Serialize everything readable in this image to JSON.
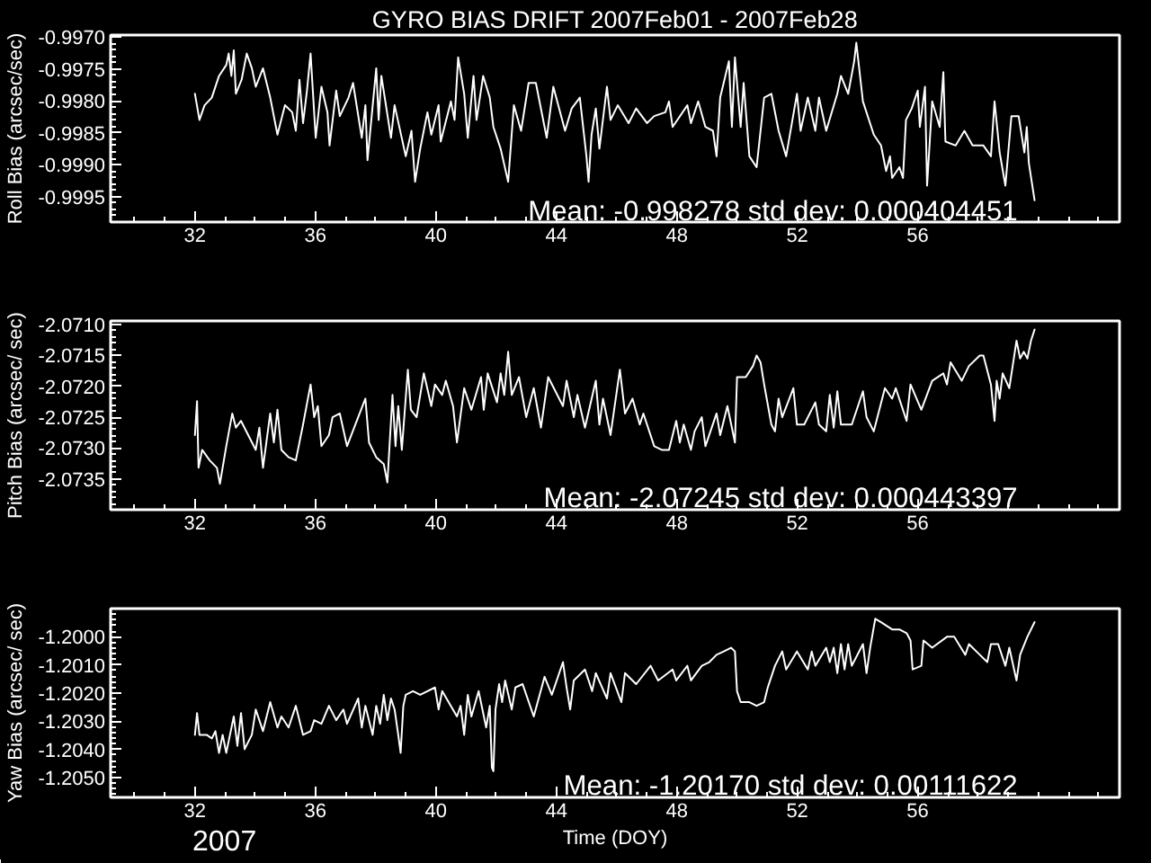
{
  "chart_data": [
    {
      "type": "line",
      "title": "GYRO BIAS DRIFT 2007Feb01 - 2007Feb28",
      "ylabel": "Roll Bias (arcsec/sec)",
      "x": [
        32,
        32.15,
        32.32,
        32.56,
        32.8,
        33.04,
        33.12,
        33.21,
        33.29,
        33.36,
        33.55,
        33.72,
        33.89,
        34.02,
        34.26,
        34.5,
        34.74,
        34.99,
        35.23,
        35.35,
        35.47,
        35.59,
        35.72,
        35.84,
        36.01,
        36.2,
        36.4,
        36.47,
        36.69,
        36.81,
        37.1,
        37.25,
        37.54,
        37.66,
        37.73,
        38.02,
        38.1,
        38.19,
        38.51,
        38.63,
        39.0,
        39.19,
        39.31,
        39.48,
        39.72,
        39.85,
        40.09,
        40.16,
        40.5,
        40.62,
        40.74,
        40.94,
        41.06,
        41.25,
        41.35,
        41.57,
        41.79,
        41.91,
        42.15,
        42.4,
        42.59,
        42.83,
        43.08,
        43.32,
        43.68,
        43.9,
        44.29,
        44.51,
        44.78,
        45.0,
        45.07,
        45.17,
        45.31,
        45.43,
        45.68,
        45.8,
        46.04,
        46.4,
        46.65,
        47.01,
        47.25,
        47.62,
        47.74,
        47.86,
        48.35,
        48.47,
        48.71,
        48.95,
        49.2,
        49.32,
        49.44,
        49.73,
        49.83,
        49.93,
        50.12,
        50.22,
        50.41,
        50.65,
        50.9,
        51.14,
        51.38,
        51.63,
        51.99,
        52.11,
        52.35,
        52.6,
        52.72,
        52.96,
        53.33,
        53.45,
        53.69,
        53.89,
        53.96,
        54.18,
        54.54,
        54.78,
        54.95,
        55.08,
        55.15,
        55.39,
        55.51,
        55.61,
        55.8,
        56.0,
        56.07,
        56.24,
        56.31,
        56.48,
        56.73,
        56.85,
        56.92,
        57.26,
        57.55,
        57.82,
        58.18,
        58.43,
        58.55,
        58.72,
        58.91,
        59.11,
        59.35,
        59.54,
        59.62,
        59.69,
        59.88
      ],
      "series": [
        {
          "color": "#ffffff",
          "values": [
            -0.99789,
            -0.9983,
            -0.99807,
            -0.99795,
            -0.99761,
            -0.99744,
            -0.99726,
            -0.99761,
            -0.99721,
            -0.99789,
            -0.99767,
            -0.99726,
            -0.99749,
            -0.99778,
            -0.99749,
            -0.99795,
            -0.99853,
            -0.99807,
            -0.99818,
            -0.99847,
            -0.99767,
            -0.99835,
            -0.99784,
            -0.99726,
            -0.99858,
            -0.99778,
            -0.99818,
            -0.9987,
            -0.99784,
            -0.99824,
            -0.99795,
            -0.99772,
            -0.99858,
            -0.99807,
            -0.99893,
            -0.99749,
            -0.9983,
            -0.99761,
            -0.99858,
            -0.99807,
            -0.99887,
            -0.99847,
            -0.99927,
            -0.99875,
            -0.99818,
            -0.99853,
            -0.99807,
            -0.99864,
            -0.99801,
            -0.9983,
            -0.99732,
            -0.99789,
            -0.99858,
            -0.99761,
            -0.9983,
            -0.99761,
            -0.99795,
            -0.99841,
            -0.99875,
            -0.99927,
            -0.99807,
            -0.99847,
            -0.99772,
            -0.99772,
            -0.99858,
            -0.99778,
            -0.99847,
            -0.99812,
            -0.99795,
            -0.99887,
            -0.99927,
            -0.99853,
            -0.99812,
            -0.99875,
            -0.99778,
            -0.9983,
            -0.99807,
            -0.99835,
            -0.99812,
            -0.99835,
            -0.99824,
            -0.99818,
            -0.99801,
            -0.99841,
            -0.99807,
            -0.99835,
            -0.99801,
            -0.99841,
            -0.99847,
            -0.99887,
            -0.99795,
            -0.99738,
            -0.99841,
            -0.99732,
            -0.99841,
            -0.99772,
            -0.99887,
            -0.99904,
            -0.99795,
            -0.99789,
            -0.99847,
            -0.99887,
            -0.99789,
            -0.99847,
            -0.99795,
            -0.99847,
            -0.99795,
            -0.99847,
            -0.99789,
            -0.99761,
            -0.99789,
            -0.99738,
            -0.99709,
            -0.99801,
            -0.99853,
            -0.9987,
            -0.9991,
            -0.99887,
            -0.99921,
            -0.99904,
            -0.99921,
            -0.9983,
            -0.99812,
            -0.99784,
            -0.99841,
            -0.99778,
            -0.99933,
            -0.99801,
            -0.99841,
            -0.99755,
            -0.99864,
            -0.9987,
            -0.99847,
            -0.9987,
            -0.9987,
            -0.99887,
            -0.99801,
            -0.99881,
            -0.99933,
            -0.99824,
            -0.99824,
            -0.99881,
            -0.99841,
            -0.99898,
            -0.99956
          ]
        }
      ],
      "xlim": [
        29.2,
        62.7
      ],
      "xticks": [
        32,
        36,
        40,
        44,
        48,
        52,
        56
      ],
      "ylim": [
        -0.9999,
        -0.99697
      ],
      "yticks": [
        {
          "value": -0.997,
          "label": "-0.9970"
        },
        {
          "value": -0.9975,
          "label": "-0.9975"
        },
        {
          "value": -0.998,
          "label": "-0.9980"
        },
        {
          "value": -0.9985,
          "label": "-0.9985"
        },
        {
          "value": -0.999,
          "label": "-0.9990"
        },
        {
          "value": -0.9995,
          "label": "-0.9995"
        }
      ],
      "annotations": [
        "Mean: -0.998278 std dev: 0.000404451"
      ]
    },
    {
      "type": "line",
      "ylabel": "Pitch Bias (arcsec/ sec)",
      "x": [
        32,
        32.07,
        32.12,
        32.24,
        32.49,
        32.73,
        32.83,
        33.04,
        33.24,
        33.36,
        33.53,
        34.02,
        34.14,
        34.26,
        34.5,
        34.62,
        34.74,
        34.87,
        35.11,
        35.35,
        35.59,
        35.84,
        35.96,
        36.08,
        36.2,
        36.45,
        36.57,
        36.81,
        37.05,
        37.42,
        37.66,
        37.78,
        38.02,
        38.27,
        38.39,
        38.56,
        38.66,
        38.75,
        38.87,
        39.07,
        39.17,
        39.36,
        39.6,
        39.85,
        39.97,
        40.21,
        40.33,
        40.57,
        40.7,
        40.94,
        41.18,
        41.5,
        41.59,
        41.72,
        42.03,
        42.15,
        42.27,
        42.4,
        42.52,
        42.76,
        43.0,
        43.25,
        43.49,
        43.73,
        43.97,
        44.22,
        44.34,
        44.58,
        44.7,
        44.95,
        45.31,
        45.43,
        45.55,
        45.8,
        46.11,
        46.28,
        46.53,
        46.77,
        46.89,
        47.25,
        47.5,
        47.74,
        47.98,
        48.1,
        48.23,
        48.47,
        48.59,
        48.83,
        48.95,
        49.32,
        49.44,
        49.68,
        49.93,
        50.0,
        50.29,
        50.53,
        50.65,
        50.78,
        50.9,
        51.14,
        51.26,
        51.38,
        51.5,
        51.87,
        51.99,
        52.23,
        52.6,
        52.72,
        52.96,
        53.08,
        53.21,
        53.33,
        53.45,
        53.81,
        54.18,
        54.3,
        54.54,
        54.91,
        55.15,
        55.27,
        55.63,
        55.76,
        56.12,
        56.48,
        56.85,
        56.97,
        57.09,
        57.46,
        57.7,
        58.06,
        58.18,
        58.43,
        58.55,
        58.62,
        58.72,
        58.82,
        59.04,
        59.28,
        59.4,
        59.52,
        59.64,
        59.76,
        59.88
      ],
      "series": [
        {
          "color": "#ffffff",
          "values": [
            -2.07279,
            -2.07224,
            -2.07332,
            -2.07303,
            -2.0732,
            -2.07332,
            -2.07358,
            -2.07297,
            -2.07244,
            -2.07267,
            -2.07256,
            -2.07303,
            -2.07267,
            -2.07332,
            -2.07244,
            -2.07291,
            -2.07238,
            -2.07303,
            -2.07315,
            -2.0732,
            -2.07262,
            -2.07197,
            -2.0725,
            -2.07232,
            -2.07297,
            -2.07279,
            -2.0725,
            -2.07244,
            -2.07297,
            -2.0725,
            -2.0722,
            -2.07291,
            -2.07315,
            -2.07326,
            -2.07356,
            -2.07214,
            -2.07297,
            -2.07232,
            -2.07303,
            -2.07173,
            -2.07238,
            -2.0725,
            -2.07179,
            -2.07232,
            -2.07197,
            -2.07214,
            -2.07191,
            -2.07232,
            -2.07291,
            -2.07203,
            -2.07238,
            -2.07185,
            -2.07238,
            -2.07179,
            -2.07226,
            -2.07179,
            -2.07214,
            -2.07144,
            -2.07214,
            -2.07185,
            -2.0725,
            -2.07203,
            -2.07267,
            -2.07185,
            -2.07208,
            -2.07232,
            -2.07191,
            -2.0725,
            -2.07214,
            -2.07267,
            -2.07191,
            -2.07262,
            -2.0722,
            -2.07279,
            -2.07173,
            -2.07244,
            -2.0722,
            -2.07262,
            -2.07244,
            -2.07297,
            -2.07303,
            -2.07303,
            -2.07256,
            -2.07291,
            -2.07262,
            -2.07303,
            -2.07273,
            -2.0725,
            -2.07297,
            -2.07244,
            -2.07279,
            -2.07232,
            -2.07291,
            -2.07185,
            -2.07185,
            -2.07167,
            -2.0715,
            -2.07161,
            -2.07197,
            -2.07262,
            -2.07273,
            -2.0722,
            -2.0725,
            -2.07203,
            -2.07262,
            -2.07262,
            -2.07226,
            -2.07262,
            -2.07273,
            -2.07214,
            -2.07267,
            -2.07208,
            -2.07262,
            -2.07262,
            -2.07208,
            -2.0725,
            -2.07273,
            -2.07203,
            -2.0722,
            -2.07203,
            -2.07256,
            -2.07197,
            -2.07238,
            -2.07191,
            -2.07179,
            -2.07197,
            -2.07161,
            -2.07191,
            -2.07167,
            -2.0715,
            -2.0715,
            -2.07197,
            -2.07256,
            -2.07191,
            -2.0722,
            -2.07179,
            -2.07203,
            -2.07126,
            -2.07155,
            -2.07144,
            -2.07155,
            -2.07126,
            -2.07108
          ]
        }
      ],
      "xlim": [
        29.2,
        62.7
      ],
      "xticks": [
        32,
        36,
        40,
        44,
        48,
        52,
        56
      ],
      "ylim": [
        -2.074,
        -2.07094
      ],
      "yticks": [
        {
          "value": -2.071,
          "label": "-2.0710"
        },
        {
          "value": -2.0715,
          "label": "-2.0715"
        },
        {
          "value": -2.072,
          "label": "-2.0720"
        },
        {
          "value": -2.0725,
          "label": "-2.0725"
        },
        {
          "value": -2.073,
          "label": "-2.0730"
        },
        {
          "value": -2.0735,
          "label": "-2.0735"
        }
      ],
      "annotations": [
        "Mean: -2.07245 std dev: 0.000443397"
      ]
    },
    {
      "type": "line",
      "xlabel": "Time (DOY)",
      "ylabel": "Yaw Bias (arcsec/ sec)",
      "x": [
        32,
        32.07,
        32.15,
        32.39,
        32.56,
        32.68,
        32.8,
        32.92,
        33.04,
        33.29,
        33.41,
        33.53,
        33.65,
        33.89,
        34.02,
        34.26,
        34.5,
        34.74,
        34.87,
        35.11,
        35.35,
        35.59,
        35.84,
        35.96,
        36.2,
        36.45,
        36.69,
        36.93,
        37.05,
        37.42,
        37.54,
        37.66,
        37.9,
        38.02,
        38.15,
        38.27,
        38.39,
        38.51,
        38.63,
        38.75,
        38.83,
        38.92,
        39.0,
        39.24,
        39.48,
        39.97,
        40.09,
        40.21,
        40.7,
        40.82,
        40.94,
        41.06,
        41.18,
        41.42,
        41.67,
        41.79,
        41.86,
        41.91,
        41.98,
        42.1,
        42.2,
        42.3,
        42.52,
        42.64,
        42.88,
        43.25,
        43.61,
        43.85,
        44.22,
        44.34,
        44.46,
        44.58,
        44.95,
        45.19,
        45.31,
        45.68,
        45.8,
        46.16,
        46.28,
        46.65,
        47.13,
        47.38,
        47.86,
        47.98,
        48.35,
        48.47,
        48.83,
        49.08,
        49.32,
        49.56,
        49.8,
        49.93,
        50.0,
        50.12,
        50.41,
        50.65,
        50.9,
        51.02,
        51.26,
        51.5,
        51.63,
        51.99,
        52.35,
        52.48,
        52.6,
        52.96,
        53.08,
        53.21,
        53.33,
        53.45,
        53.57,
        53.69,
        53.81,
        54.18,
        54.3,
        54.42,
        54.59,
        54.78,
        55.15,
        55.39,
        55.63,
        55.76,
        55.83,
        56.12,
        56.19,
        56.48,
        56.97,
        57.21,
        57.58,
        57.7,
        58.06,
        58.31,
        58.43,
        58.67,
        58.91,
        59.04,
        59.28,
        59.4,
        59.64,
        59.88
      ],
      "series": [
        {
          "color": "#ffffff",
          "values": [
            -1.20348,
            -1.20271,
            -1.20348,
            -1.20348,
            -1.20361,
            -1.20335,
            -1.20412,
            -1.20348,
            -1.20412,
            -1.20283,
            -1.20387,
            -1.20271,
            -1.20399,
            -1.20348,
            -1.20258,
            -1.20335,
            -1.20232,
            -1.20322,
            -1.20283,
            -1.20322,
            -1.20245,
            -1.20348,
            -1.20335,
            -1.20296,
            -1.20309,
            -1.20245,
            -1.20296,
            -1.20258,
            -1.20309,
            -1.20219,
            -1.20322,
            -1.20245,
            -1.20348,
            -1.20245,
            -1.20309,
            -1.20206,
            -1.20296,
            -1.20219,
            -1.20258,
            -1.20348,
            -1.20412,
            -1.20245,
            -1.20206,
            -1.20193,
            -1.20206,
            -1.2018,
            -1.20258,
            -1.20193,
            -1.20283,
            -1.20245,
            -1.20348,
            -1.20206,
            -1.20283,
            -1.20193,
            -1.20322,
            -1.20245,
            -1.20464,
            -1.20477,
            -1.20258,
            -1.20168,
            -1.20232,
            -1.20155,
            -1.20258,
            -1.2018,
            -1.20168,
            -1.20283,
            -1.20142,
            -1.20206,
            -1.2009,
            -1.2018,
            -1.20258,
            -1.20155,
            -1.20116,
            -1.20193,
            -1.20129,
            -1.20219,
            -1.20129,
            -1.20232,
            -1.20129,
            -1.20168,
            -1.20103,
            -1.20155,
            -1.20116,
            -1.20155,
            -1.20103,
            -1.20155,
            -1.20103,
            -1.2009,
            -1.20064,
            -1.20052,
            -1.20039,
            -1.20052,
            -1.20193,
            -1.20232,
            -1.20232,
            -1.20245,
            -1.20232,
            -1.2018,
            -1.20103,
            -1.20052,
            -1.20116,
            -1.20052,
            -1.20116,
            -1.20052,
            -1.20103,
            -1.20039,
            -1.2009,
            -1.20039,
            -1.20129,
            -1.20026,
            -1.20116,
            -1.20026,
            -1.20103,
            -1.20026,
            -1.20129,
            -1.20039,
            -1.19936,
            -1.19948,
            -1.19974,
            -1.19974,
            -1.19987,
            -1.20013,
            -1.20116,
            -1.20103,
            -1.20013,
            -1.20039,
            -1.2,
            -1.2,
            -1.20064,
            -1.20026,
            -1.20064,
            -1.2009,
            -1.20026,
            -1.20026,
            -1.20103,
            -1.20039,
            -1.20155,
            -1.20064,
            -1.2,
            -1.19948
          ]
        }
      ],
      "xlim": [
        29.2,
        62.7
      ],
      "xticks": [
        32,
        36,
        40,
        44,
        48,
        52,
        56
      ],
      "ylim": [
        -1.2057,
        -1.199
      ],
      "yticks": [
        {
          "value": -1.2,
          "label": "-1.2000"
        },
        {
          "value": -1.201,
          "label": "-1.2010"
        },
        {
          "value": -1.202,
          "label": "-1.2020"
        },
        {
          "value": -1.203,
          "label": "-1.2030"
        },
        {
          "value": -1.204,
          "label": "-1.2040"
        },
        {
          "value": -1.205,
          "label": "-1.2050"
        }
      ],
      "annotations": [
        "Mean: -1.20170 std dev: 0.00111622",
        "2007"
      ]
    }
  ]
}
